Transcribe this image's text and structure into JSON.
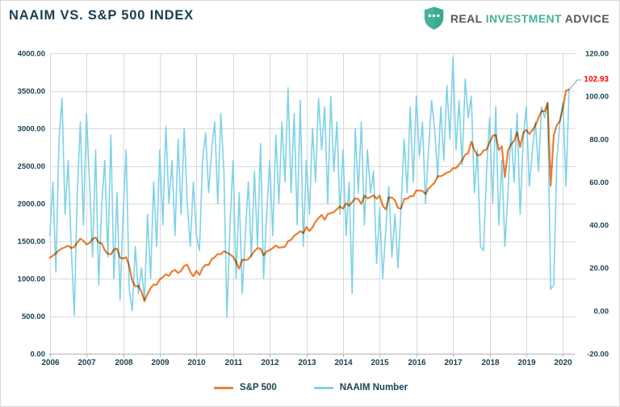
{
  "header": {
    "title": "NAAIM VS. S&P 500 INDEX",
    "logo": {
      "word1": "REAL",
      "word2": "INVESTMENT",
      "word3": "ADVICE",
      "icon": "shield-with-three-dots",
      "brand_teal": "#45b39a",
      "brand_gray": "#555759"
    }
  },
  "colors": {
    "title_navy": "#1b3e52",
    "axis_label": "#1c4254",
    "gridline": "#d9d9d9",
    "axis_line": "#b3b3b3",
    "sp500_orange": "#ED7D31",
    "naaim_blue": "#7FD1E8",
    "annotation_red": "#ff0000",
    "leader_gray": "#9b9b9b"
  },
  "chart_data": {
    "type": "line",
    "title": "NAAIM VS. S&P 500 INDEX",
    "x_axis": {
      "tick_labels": [
        "2006",
        "2007",
        "2008",
        "2009",
        "2010",
        "2011",
        "2012",
        "2013",
        "2014",
        "2015",
        "2016",
        "2017",
        "2018",
        "2019",
        "2020"
      ],
      "start_year_fraction": 2006.5,
      "points_per_year": 12,
      "note": "weekly-style series sampled monthly, Jul 2006 - Sep 2020"
    },
    "left_axis": {
      "min": 0,
      "max": 4000,
      "tick_step": 500,
      "tick_labels": [
        "0.00",
        "500.00",
        "1000.00",
        "1500.00",
        "2000.00",
        "2500.00",
        "3000.00",
        "3500.00",
        "4000.00"
      ]
    },
    "right_axis": {
      "min": -20,
      "max": 120,
      "tick_step": 20,
      "tick_labels": [
        "-20.00",
        "0.00",
        "20.00",
        "40.00",
        "60.00",
        "80.00",
        "100.00",
        "120.00"
      ]
    },
    "grid": true,
    "legend_position": "bottom",
    "series": [
      {
        "name": "S&P 500",
        "axis": "left",
        "color": "#ED7D31",
        "values": [
          1277,
          1304,
          1336,
          1378,
          1401,
          1418,
          1438,
          1407,
          1421,
          1482,
          1531,
          1503,
          1455,
          1474,
          1527,
          1549,
          1481,
          1468,
          1378,
          1331,
          1323,
          1386,
          1400,
          1280,
          1267,
          1283,
          1166,
          969,
          896,
          903,
          826,
          700,
          798,
          873,
          919,
          919,
          987,
          1021,
          1057,
          1036,
          1096,
          1115,
          1074,
          1104,
          1169,
          1187,
          1089,
          1031,
          1102,
          1049,
          1141,
          1183,
          1181,
          1258,
          1286,
          1327,
          1326,
          1364,
          1345,
          1321,
          1292,
          1219,
          1131,
          1253,
          1247,
          1258,
          1312,
          1366,
          1408,
          1398,
          1310,
          1362,
          1379,
          1407,
          1441,
          1412,
          1416,
          1426,
          1498,
          1515,
          1569,
          1598,
          1631,
          1606,
          1686,
          1633,
          1682,
          1757,
          1806,
          1848,
          1783,
          1859,
          1872,
          1884,
          1924,
          1960,
          1931,
          2003,
          1972,
          2018,
          2068,
          2059,
          1995,
          2105,
          2068,
          2086,
          2107,
          2063,
          2104,
          1972,
          1920,
          2079,
          2080,
          2044,
          1940,
          1932,
          2060,
          2065,
          2097,
          2099,
          2174,
          2171,
          2168,
          2126,
          2199,
          2239,
          2279,
          2364,
          2363,
          2384,
          2412,
          2423,
          2470,
          2472,
          2519,
          2575,
          2648,
          2674,
          2824,
          2714,
          2641,
          2648,
          2705,
          2718,
          2816,
          2902,
          2914,
          2712,
          2760,
          2351,
          2704,
          2784,
          2834,
          2946,
          2752,
          2942,
          2980,
          2926,
          2977,
          3038,
          3141,
          3231,
          3226,
          3338,
          2237,
          2912,
          3044,
          3100,
          3271,
          3500,
          3520
        ]
      },
      {
        "name": "NAAIM Number",
        "axis": "right",
        "color": "#7FD1E8",
        "values": [
          35,
          60,
          18,
          80,
          99,
          45,
          70,
          30,
          -2,
          55,
          88,
          40,
          92,
          60,
          25,
          75,
          12,
          50,
          70,
          25,
          82,
          15,
          55,
          5,
          45,
          75,
          10,
          0,
          30,
          8,
          20,
          5,
          45,
          15,
          60,
          30,
          75,
          40,
          86,
          50,
          70,
          35,
          80,
          45,
          85,
          50,
          30,
          60,
          35,
          28,
          70,
          83,
          55,
          75,
          88,
          50,
          92,
          65,
          -3,
          40,
          70,
          15,
          55,
          8,
          35,
          60,
          25,
          65,
          30,
          78,
          15,
          45,
          70,
          35,
          82,
          50,
          88,
          60,
          104,
          55,
          92,
          40,
          98,
          30,
          70,
          45,
          85,
          60,
          99,
          75,
          95,
          50,
          100,
          65,
          88,
          45,
          75,
          35,
          60,
          8,
          85,
          55,
          88,
          40,
          75,
          55,
          65,
          22,
          48,
          15,
          38,
          58,
          25,
          45,
          20,
          48,
          80,
          55,
          95,
          60,
          100,
          72,
          88,
          50,
          75,
          98,
          85,
          62,
          95,
          70,
          105,
          80,
          118,
          75,
          98,
          68,
          108,
          90,
          100,
          55,
          75,
          30,
          28,
          65,
          90,
          50,
          95,
          40,
          70,
          30,
          55,
          85,
          60,
          92,
          45,
          80,
          95,
          58,
          75,
          88,
          65,
          95,
          90,
          97,
          10,
          12,
          70,
          88,
          97,
          58,
          102.93
        ]
      }
    ],
    "annotation": {
      "text": "102.93",
      "color": "#ff0000",
      "refers_to": "NAAIM Number last value"
    }
  },
  "legend": {
    "items": [
      {
        "label": "S&P 500",
        "color": "#ED7D31"
      },
      {
        "label": "NAAIM Number",
        "color": "#7FD1E8"
      }
    ]
  }
}
